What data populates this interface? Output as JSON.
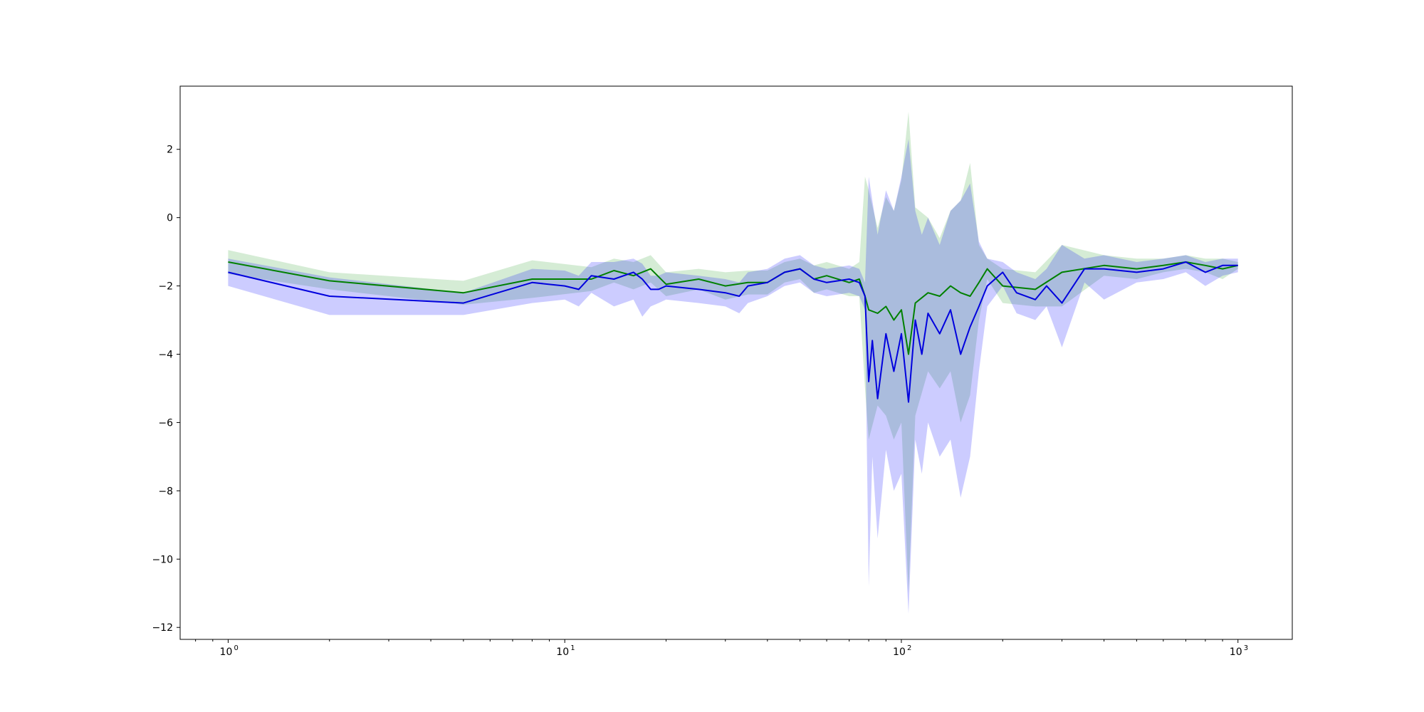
{
  "chart_data": {
    "type": "line",
    "title": "",
    "xlabel": "",
    "ylabel": "",
    "xscale": "log",
    "xlim": [
      0.72,
      1450
    ],
    "ylim": [
      -12.35,
      3.85
    ],
    "x_ticks": [
      {
        "value": 1,
        "base": "10",
        "exp": "0"
      },
      {
        "value": 10,
        "base": "10",
        "exp": "1"
      },
      {
        "value": 100,
        "base": "10",
        "exp": "2"
      },
      {
        "value": 1000,
        "base": "10",
        "exp": "3"
      }
    ],
    "y_ticks": [
      2,
      0,
      -2,
      -4,
      -6,
      -8,
      -10,
      -12
    ],
    "y_tick_labels": [
      "2",
      "0",
      "−2",
      "−4",
      "−6",
      "−8",
      "−10",
      "−12"
    ],
    "grid": false,
    "legend": "none",
    "series": [
      {
        "color": "#008000",
        "band_color": "#2ca02c",
        "x": [
          1,
          2,
          5,
          8,
          12,
          14,
          16,
          18,
          20,
          25,
          30,
          35,
          40,
          45,
          50,
          55,
          60,
          70,
          75,
          78,
          80,
          85,
          90,
          95,
          100,
          105,
          110,
          120,
          130,
          140,
          150,
          160,
          170,
          180,
          200,
          250,
          300,
          400,
          500,
          600,
          700,
          800,
          900,
          1000
        ],
        "y": [
          -1.3,
          -1.85,
          -2.2,
          -1.8,
          -1.8,
          -1.55,
          -1.7,
          -1.5,
          -1.95,
          -1.8,
          -2.0,
          -1.9,
          -1.9,
          -1.6,
          -1.5,
          -1.8,
          -1.7,
          -1.9,
          -1.8,
          -2.3,
          -2.7,
          -2.8,
          -2.6,
          -3.0,
          -2.7,
          -4.0,
          -2.5,
          -2.2,
          -2.3,
          -2.0,
          -2.2,
          -2.3,
          -1.9,
          -1.5,
          -2.0,
          -2.1,
          -1.6,
          -1.4,
          -1.5,
          -1.4,
          -1.3,
          -1.4,
          -1.5,
          -1.4
        ],
        "upper": [
          -0.95,
          -1.6,
          -1.85,
          -1.25,
          -1.45,
          -1.2,
          -1.3,
          -1.1,
          -1.6,
          -1.5,
          -1.6,
          -1.55,
          -1.55,
          -1.3,
          -1.2,
          -1.4,
          -1.3,
          -1.5,
          -1.3,
          1.2,
          0.8,
          -0.3,
          0.6,
          0.2,
          1.1,
          3.1,
          0.3,
          0.0,
          -0.6,
          0.2,
          0.5,
          1.6,
          -0.8,
          -1.2,
          -1.5,
          -1.6,
          -0.8,
          -1.1,
          -1.2,
          -1.2,
          -1.1,
          -1.2,
          -1.2,
          -1.3
        ],
        "lower": [
          -1.65,
          -2.1,
          -2.55,
          -2.35,
          -2.15,
          -1.9,
          -2.1,
          -1.9,
          -2.3,
          -2.1,
          -2.4,
          -2.25,
          -2.25,
          -1.9,
          -1.8,
          -2.2,
          -2.1,
          -2.3,
          -2.3,
          -5.0,
          -6.5,
          -5.5,
          -5.8,
          -6.5,
          -6.0,
          -11.0,
          -5.8,
          -4.5,
          -5.0,
          -4.5,
          -6.0,
          -5.2,
          -3.0,
          -1.8,
          -2.5,
          -2.6,
          -2.6,
          -1.7,
          -1.8,
          -1.6,
          -1.5,
          -1.6,
          -1.8,
          -1.5
        ]
      },
      {
        "color": "#0000dd",
        "band_color": "#0000ff",
        "x": [
          1,
          2,
          5,
          8,
          10,
          11,
          12,
          14,
          16,
          17,
          18,
          19,
          20,
          25,
          30,
          33,
          35,
          40,
          45,
          50,
          55,
          60,
          70,
          75,
          78,
          80,
          82,
          85,
          90,
          95,
          100,
          105,
          110,
          115,
          120,
          130,
          140,
          150,
          160,
          170,
          180,
          200,
          220,
          250,
          270,
          300,
          350,
          400,
          500,
          600,
          700,
          800,
          900,
          1000
        ],
        "y": [
          -1.6,
          -2.3,
          -2.5,
          -1.9,
          -2.0,
          -2.1,
          -1.7,
          -1.8,
          -1.6,
          -1.8,
          -2.1,
          -2.1,
          -2.0,
          -2.1,
          -2.2,
          -2.3,
          -2.0,
          -1.9,
          -1.6,
          -1.5,
          -1.8,
          -1.9,
          -1.8,
          -1.9,
          -2.3,
          -4.8,
          -3.6,
          -5.3,
          -3.4,
          -4.5,
          -3.4,
          -5.4,
          -3.0,
          -4.0,
          -2.8,
          -3.4,
          -2.7,
          -4.0,
          -3.2,
          -2.6,
          -2.0,
          -1.6,
          -2.2,
          -2.4,
          -2.0,
          -2.5,
          -1.5,
          -1.5,
          -1.6,
          -1.5,
          -1.3,
          -1.6,
          -1.4,
          -1.4
        ],
        "upper": [
          -1.2,
          -1.75,
          -2.2,
          -1.5,
          -1.55,
          -1.7,
          -1.3,
          -1.3,
          -1.2,
          -1.35,
          -1.7,
          -1.7,
          -1.6,
          -1.7,
          -1.8,
          -1.9,
          -1.6,
          -1.5,
          -1.2,
          -1.1,
          -1.4,
          -1.5,
          -1.4,
          -1.5,
          -1.9,
          1.2,
          0.5,
          -0.5,
          0.8,
          0.2,
          1.2,
          2.3,
          0.2,
          -0.5,
          0.0,
          -0.8,
          0.2,
          0.5,
          1.0,
          -0.7,
          -1.2,
          -1.3,
          -1.6,
          -1.8,
          -1.5,
          -0.8,
          -1.2,
          -1.1,
          -1.3,
          -1.2,
          -1.1,
          -1.3,
          -1.2,
          -1.2
        ],
        "lower": [
          -2.0,
          -2.85,
          -2.85,
          -2.5,
          -2.4,
          -2.6,
          -2.2,
          -2.6,
          -2.4,
          -2.9,
          -2.6,
          -2.5,
          -2.4,
          -2.5,
          -2.6,
          -2.8,
          -2.5,
          -2.3,
          -2.0,
          -1.9,
          -2.2,
          -2.3,
          -2.2,
          -2.3,
          -2.7,
          -10.8,
          -7.0,
          -9.4,
          -6.8,
          -8.0,
          -7.5,
          -11.6,
          -6.5,
          -7.5,
          -6.0,
          -7.0,
          -6.5,
          -8.2,
          -7.0,
          -4.5,
          -2.6,
          -2.0,
          -2.8,
          -3.0,
          -2.6,
          -3.8,
          -1.9,
          -2.4,
          -1.9,
          -1.8,
          -1.6,
          -2.0,
          -1.7,
          -1.6
        ]
      }
    ]
  }
}
